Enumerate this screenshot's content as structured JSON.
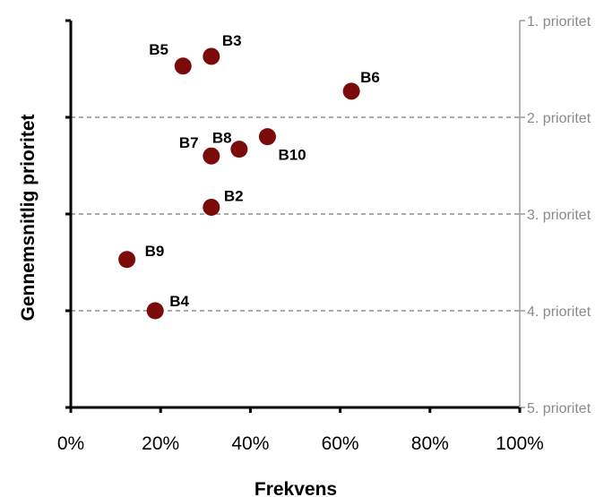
{
  "chart_data": {
    "type": "scatter",
    "xlabel": "Frekvens",
    "ylabel": "Gennemsnitlig prioritet",
    "xlim": [
      0,
      100
    ],
    "ylim": [
      1,
      5
    ],
    "y_inverted": true,
    "x_ticks": [
      "0%",
      "20%",
      "40%",
      "60%",
      "80%",
      "100%"
    ],
    "x_tick_values": [
      0,
      20,
      40,
      60,
      80,
      100
    ],
    "right_ticks": [
      "1. prioritet",
      "2. prioritet",
      "3. prioritet",
      "4. prioritet",
      "5. prioritet"
    ],
    "right_tick_values": [
      1,
      2,
      3,
      4,
      5
    ],
    "grid": "horizontal dashed at 2, 3, 4",
    "marker_color": "#7b0b0b",
    "points": [
      {
        "label": "B3",
        "x": 31.3,
        "y": 1.37
      },
      {
        "label": "B5",
        "x": 25.0,
        "y": 1.47
      },
      {
        "label": "B6",
        "x": 62.5,
        "y": 1.73
      },
      {
        "label": "B10",
        "x": 43.8,
        "y": 2.2
      },
      {
        "label": "B8",
        "x": 37.5,
        "y": 2.33
      },
      {
        "label": "B7",
        "x": 31.3,
        "y": 2.4
      },
      {
        "label": "B2",
        "x": 31.3,
        "y": 2.93
      },
      {
        "label": "B9",
        "x": 12.5,
        "y": 3.47
      },
      {
        "label": "B4",
        "x": 18.8,
        "y": 4.0
      }
    ]
  }
}
